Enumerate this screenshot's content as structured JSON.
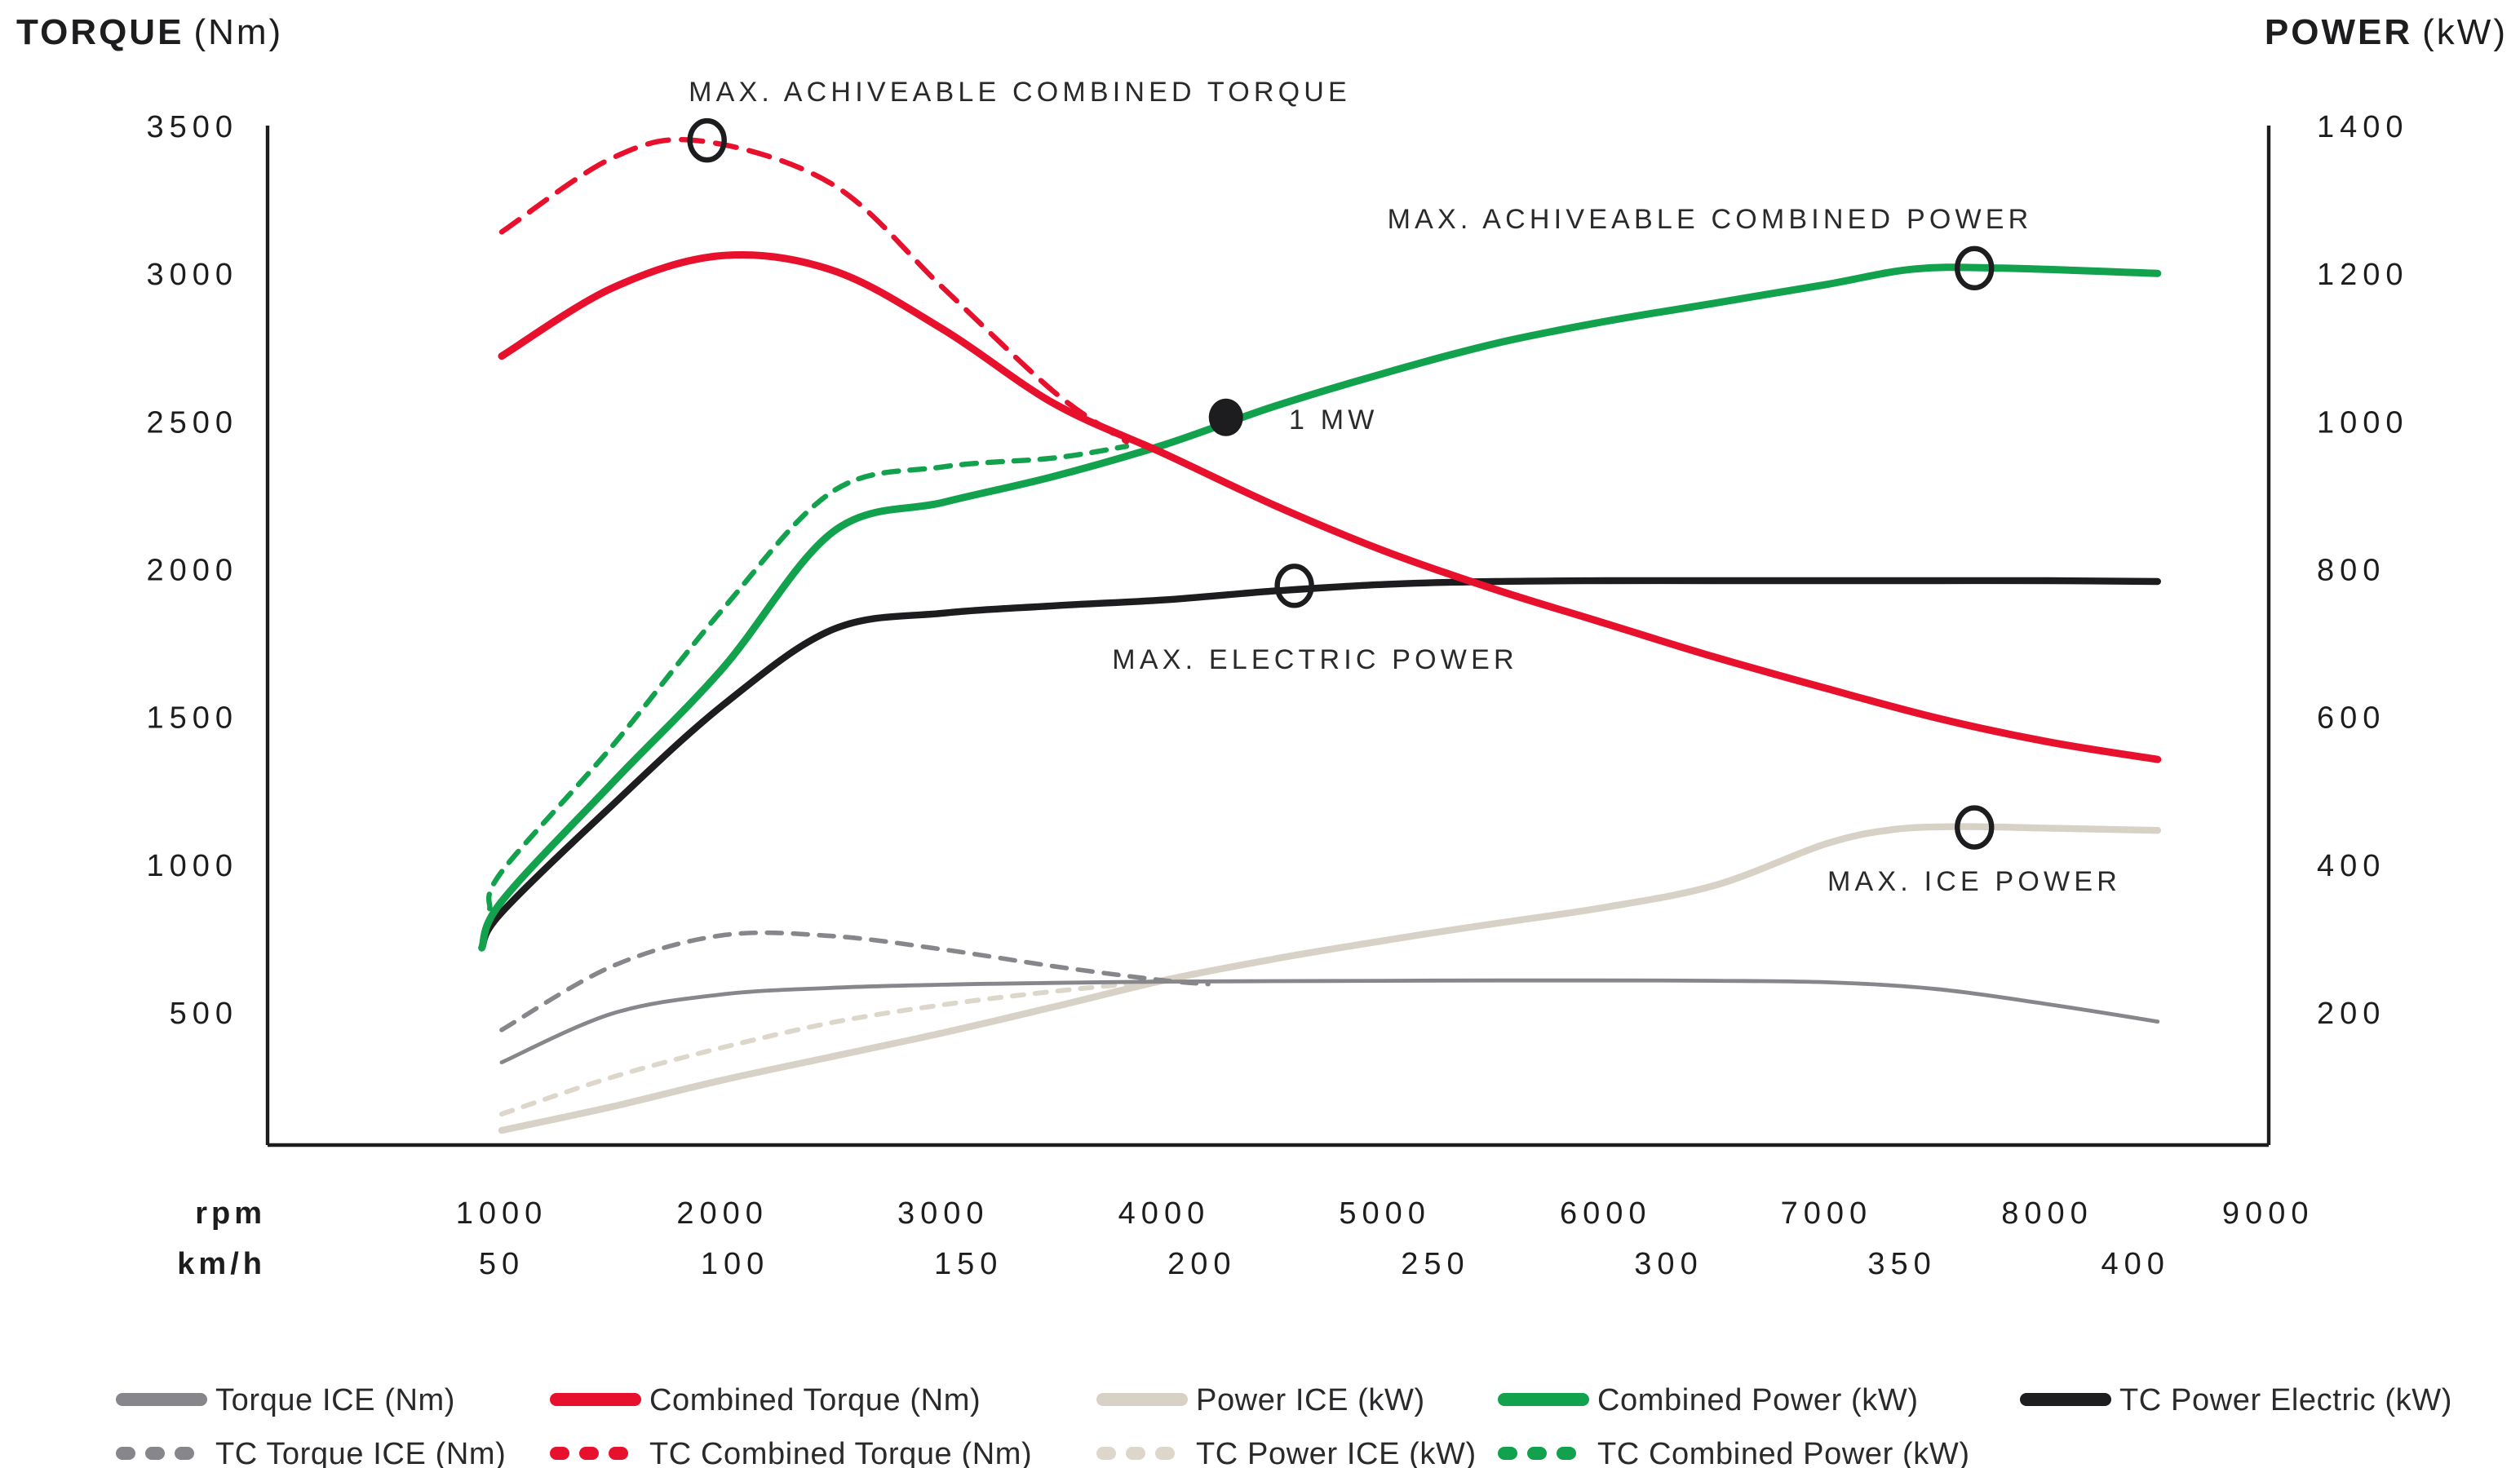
{
  "header": {
    "left_title": "TORQUE",
    "left_unit": "(Nm)",
    "right_title": "POWER",
    "right_unit": "(kW)"
  },
  "colors": {
    "red": "#e8112d",
    "green": "#12a24d",
    "black": "#1d1d1f",
    "gray": "#87878b",
    "beige": "#d8d2c6",
    "beige_light": "#ddd7cb",
    "axis": "#1d1d1f"
  },
  "chart_data": {
    "type": "line",
    "title": "",
    "x_axis": {
      "row1_label": "rpm",
      "row1_ticks": [
        1000,
        2000,
        3000,
        4000,
        5000,
        6000,
        7000,
        8000,
        9000
      ],
      "row2_label": "km/h",
      "row2_ticks": [
        50,
        100,
        150,
        200,
        250,
        300,
        350,
        400
      ]
    },
    "y_left": {
      "label": "TORQUE (Nm)",
      "ticks": [
        3500,
        3000,
        2500,
        2000,
        1500,
        1000,
        500
      ],
      "range_shown": [
        50,
        3500
      ]
    },
    "y_right": {
      "label": "POWER (kW)",
      "ticks": [
        1400,
        1200,
        1000,
        800,
        600,
        400,
        200
      ],
      "range_shown": [
        20,
        1400
      ]
    },
    "grid": false,
    "legend_position": "bottom",
    "series": [
      {
        "id": "tc-power-ice",
        "name": "TC Power ICE (kW)",
        "axis": "power",
        "color": "#ddd7cb",
        "dash": "7 7",
        "width": 3,
        "points": [
          [
            1000,
            62
          ],
          [
            1500,
            112
          ],
          [
            2000,
            152
          ],
          [
            2500,
            186
          ],
          [
            3000,
            210
          ],
          [
            3500,
            228
          ],
          [
            4000,
            243
          ]
        ]
      },
      {
        "id": "power-ice",
        "name": "Power ICE (kW)",
        "axis": "power",
        "color": "#d8d2c6",
        "dash": null,
        "width": 4.2,
        "points": [
          [
            1000,
            40
          ],
          [
            1500,
            72
          ],
          [
            2000,
            108
          ],
          [
            2500,
            140
          ],
          [
            3000,
            172
          ],
          [
            3500,
            207
          ],
          [
            4000,
            243
          ],
          [
            4500,
            272
          ],
          [
            5000,
            297
          ],
          [
            5500,
            320
          ],
          [
            6000,
            342
          ],
          [
            6500,
            372
          ],
          [
            7000,
            428
          ],
          [
            7300,
            447
          ],
          [
            7600,
            451
          ],
          [
            8000,
            449
          ],
          [
            8500,
            446
          ]
        ]
      },
      {
        "id": "tc-torque-ice",
        "name": "TC Torque ICE (Nm)",
        "axis": "torque",
        "color": "#87878b",
        "dash": "9 7",
        "width": 2.8,
        "points": [
          [
            1000,
            440
          ],
          [
            1500,
            655
          ],
          [
            2000,
            760
          ],
          [
            2500,
            757
          ],
          [
            3000,
            712
          ],
          [
            3500,
            655
          ],
          [
            4000,
            607
          ],
          [
            4200,
            595
          ]
        ]
      },
      {
        "id": "torque-ice",
        "name": "Torque ICE (Nm)",
        "axis": "torque",
        "color": "#87878b",
        "dash": null,
        "width": 2.4,
        "points": [
          [
            1000,
            330
          ],
          [
            1500,
            495
          ],
          [
            2000,
            560
          ],
          [
            2500,
            582
          ],
          [
            3000,
            593
          ],
          [
            3500,
            599
          ],
          [
            4000,
            603
          ],
          [
            4500,
            605
          ],
          [
            5000,
            606
          ],
          [
            5500,
            607
          ],
          [
            6000,
            607
          ],
          [
            6500,
            606
          ],
          [
            7000,
            601
          ],
          [
            7500,
            578
          ],
          [
            8000,
            527
          ],
          [
            8500,
            468
          ]
        ]
      },
      {
        "id": "tc-combined-power",
        "name": "TC Combined Power (kW)",
        "axis": "power",
        "color": "#12a24d",
        "dash": "9 7",
        "width": 3.2,
        "points": [
          [
            945,
            340
          ],
          [
            1000,
            390
          ],
          [
            1500,
            560
          ],
          [
            2000,
            745
          ],
          [
            2500,
            905
          ],
          [
            3000,
            938
          ],
          [
            3500,
            950
          ],
          [
            3830,
            966
          ]
        ]
      },
      {
        "id": "tc-power-electric",
        "name": "TC Power Electric (kW)",
        "axis": "power",
        "color": "#1d1d1f",
        "dash": null,
        "width": 4.2,
        "points": [
          [
            910,
            287
          ],
          [
            1000,
            335
          ],
          [
            1500,
            480
          ],
          [
            2000,
            615
          ],
          [
            2500,
            718
          ],
          [
            3000,
            740
          ],
          [
            3500,
            750
          ],
          [
            4000,
            758
          ],
          [
            4500,
            770
          ],
          [
            5000,
            779
          ],
          [
            5500,
            783
          ],
          [
            6000,
            784
          ],
          [
            6500,
            784
          ],
          [
            7000,
            784
          ],
          [
            7500,
            784
          ],
          [
            8000,
            784
          ],
          [
            8500,
            783
          ]
        ]
      },
      {
        "id": "combined-power",
        "name": "Combined Power (kW)",
        "axis": "power",
        "color": "#12a24d",
        "dash": null,
        "width": 4.5,
        "points": [
          [
            910,
            287
          ],
          [
            1000,
            350
          ],
          [
            1500,
            510
          ],
          [
            2000,
            665
          ],
          [
            2500,
            850
          ],
          [
            3000,
            890
          ],
          [
            3500,
            925
          ],
          [
            4000,
            968
          ],
          [
            4500,
            1020
          ],
          [
            5000,
            1065
          ],
          [
            5500,
            1105
          ],
          [
            6000,
            1135
          ],
          [
            6500,
            1160
          ],
          [
            7000,
            1185
          ],
          [
            7400,
            1206
          ],
          [
            7800,
            1207
          ],
          [
            8500,
            1200
          ]
        ]
      },
      {
        "id": "tc-combined-torque",
        "name": "TC Combined Torque (Nm)",
        "axis": "torque",
        "color": "#e8112d",
        "dash": "13 8",
        "width": 3.2,
        "points": [
          [
            1000,
            3140
          ],
          [
            1500,
            3390
          ],
          [
            1900,
            3448
          ],
          [
            2500,
            3300
          ],
          [
            3000,
            2950
          ],
          [
            3500,
            2600
          ],
          [
            3830,
            2430
          ]
        ]
      },
      {
        "id": "combined-torque",
        "name": "Combined Torque (Nm)",
        "axis": "torque",
        "color": "#e8112d",
        "dash": null,
        "width": 4.5,
        "points": [
          [
            1000,
            2720
          ],
          [
            1500,
            2950
          ],
          [
            2000,
            3060
          ],
          [
            2500,
            3010
          ],
          [
            3000,
            2810
          ],
          [
            3500,
            2560
          ],
          [
            4000,
            2390
          ],
          [
            4500,
            2215
          ],
          [
            5000,
            2060
          ],
          [
            5500,
            1930
          ],
          [
            6000,
            1815
          ],
          [
            6500,
            1700
          ],
          [
            7000,
            1595
          ],
          [
            7500,
            1495
          ],
          [
            8000,
            1415
          ],
          [
            8500,
            1355
          ]
        ]
      }
    ],
    "annotations": [
      {
        "id": "max-combined-torque",
        "text": "MAX. ACHIVEABLE COMBINED TORQUE",
        "x": 625,
        "y": 62,
        "anchor": "middle"
      },
      {
        "id": "max-combined-power",
        "text": "MAX. ACHIVEABLE COMBINED POWER",
        "x": 1048,
        "y": 140,
        "anchor": "middle"
      },
      {
        "id": "one-mw",
        "text": "1 MW",
        "x": 790,
        "y": 263,
        "anchor": "start"
      },
      {
        "id": "max-electric-power",
        "text": "MAX. ELECTRIC POWER",
        "x": 806,
        "y": 410,
        "anchor": "middle"
      },
      {
        "id": "max-ice-power",
        "text": "MAX. ICE POWER",
        "x": 1210,
        "y": 546,
        "anchor": "middle"
      }
    ],
    "markers": [
      {
        "id": "marker-max-combined-torque",
        "type": "circle",
        "rpm": 1930,
        "axis": "torque",
        "value": 3450
      },
      {
        "id": "marker-max-combined-power",
        "type": "circle",
        "rpm": 7670,
        "axis": "power",
        "value": 1207
      },
      {
        "id": "marker-one-mw",
        "type": "dot",
        "rpm": 4280,
        "axis": "power",
        "value": 1005
      },
      {
        "id": "marker-max-electric-power",
        "type": "circle",
        "rpm": 4590,
        "axis": "power",
        "value": 777
      },
      {
        "id": "marker-max-ice-power",
        "type": "circle",
        "rpm": 7670,
        "axis": "power",
        "value": 450
      }
    ]
  },
  "legend": {
    "rows": [
      [
        {
          "label": "Torque ICE (Nm)",
          "color": "#87878b",
          "dash": false
        },
        {
          "label": "Combined Torque (Nm)",
          "color": "#e8112d",
          "dash": false
        },
        {
          "label": "Power ICE (kW)",
          "color": "#d8d2c6",
          "dash": false
        },
        {
          "label": "Combined Power (kW)",
          "color": "#12a24d",
          "dash": false
        },
        {
          "label": "TC Power Electric (kW)",
          "color": "#1d1d1f",
          "dash": false
        }
      ],
      [
        {
          "label": "TC Torque ICE (Nm)",
          "color": "#87878b",
          "dash": true
        },
        {
          "label": "TC Combined Torque (Nm)",
          "color": "#e8112d",
          "dash": true
        },
        {
          "label": "TC Power ICE (kW)",
          "color": "#ddd7cb",
          "dash": true
        },
        {
          "label": "TC Combined Power (kW)",
          "color": "#12a24d",
          "dash": true
        }
      ]
    ]
  }
}
